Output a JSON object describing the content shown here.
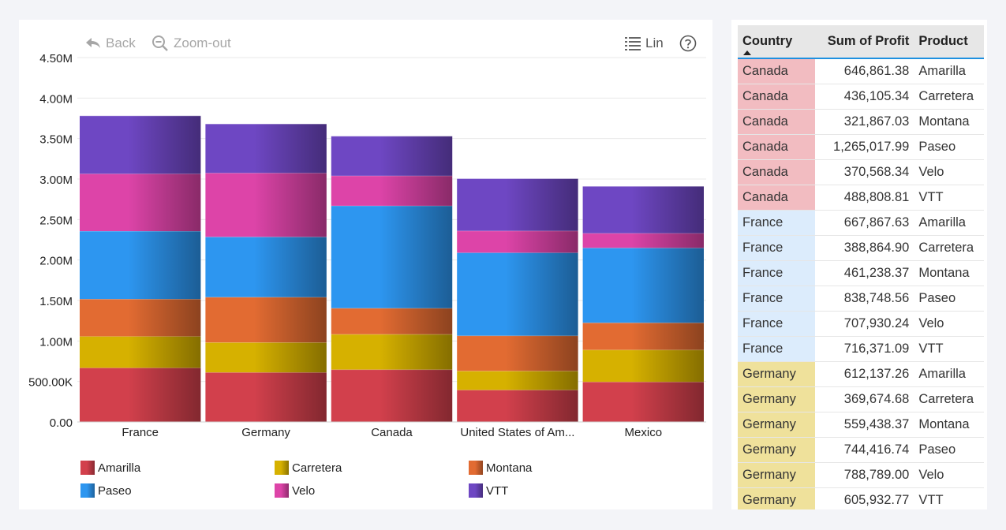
{
  "toolbar": {
    "back_label": "Back",
    "zoom_label": "Zoom-out",
    "scale_label": "Lin"
  },
  "colors": {
    "Amarilla": "#d2404c",
    "Carretera": "#d6b100",
    "Montana": "#e26b32",
    "Paseo": "#2d96f0",
    "Velo": "#dd44a8",
    "VTT": "#6e47c3",
    "canada_row": "#f2bcc1",
    "france_row": "#dcecfc",
    "germany_row": "#efe19b",
    "table_header": "#e7e7e7",
    "header_rule": "#1e90e0"
  },
  "chart_data": {
    "type": "bar",
    "stacked": true,
    "categories": [
      "France",
      "Germany",
      "Canada",
      "United States of Am...",
      "Mexico"
    ],
    "series": [
      {
        "name": "Amarilla",
        "values": [
          667867.63,
          612137.26,
          646861.38,
          395000,
          495000
        ]
      },
      {
        "name": "Carretera",
        "values": [
          388864.9,
          369674.68,
          436105.34,
          235000,
          395000
        ]
      },
      {
        "name": "Montana",
        "values": [
          461238.37,
          559438.37,
          321867.03,
          435000,
          335000
        ]
      },
      {
        "name": "Paseo",
        "values": [
          838748.56,
          744416.74,
          1265017.99,
          1025000,
          925000
        ]
      },
      {
        "name": "Velo",
        "values": [
          707930.24,
          788789.0,
          370568.34,
          270000,
          180000
        ]
      },
      {
        "name": "VTT",
        "values": [
          716371.09,
          605932.77,
          488808.81,
          645000,
          580000
        ]
      }
    ],
    "y_ticks": [
      "0.00",
      "500.00K",
      "1.00M",
      "1.50M",
      "2.00M",
      "2.50M",
      "3.00M",
      "3.50M",
      "4.00M",
      "4.50M"
    ],
    "ylim": [
      0,
      4500000
    ],
    "grid": true,
    "legend_position": "bottom"
  },
  "table": {
    "headers": {
      "country": "Country",
      "profit": "Sum of Profit",
      "product": "Product"
    },
    "rows": [
      {
        "country": "Canada",
        "profit": "646,861.38",
        "product": "Amarilla"
      },
      {
        "country": "Canada",
        "profit": "436,105.34",
        "product": "Carretera"
      },
      {
        "country": "Canada",
        "profit": "321,867.03",
        "product": "Montana"
      },
      {
        "country": "Canada",
        "profit": "1,265,017.99",
        "product": "Paseo"
      },
      {
        "country": "Canada",
        "profit": "370,568.34",
        "product": "Velo"
      },
      {
        "country": "Canada",
        "profit": "488,808.81",
        "product": "VTT"
      },
      {
        "country": "France",
        "profit": "667,867.63",
        "product": "Amarilla"
      },
      {
        "country": "France",
        "profit": "388,864.90",
        "product": "Carretera"
      },
      {
        "country": "France",
        "profit": "461,238.37",
        "product": "Montana"
      },
      {
        "country": "France",
        "profit": "838,748.56",
        "product": "Paseo"
      },
      {
        "country": "France",
        "profit": "707,930.24",
        "product": "Velo"
      },
      {
        "country": "France",
        "profit": "716,371.09",
        "product": "VTT"
      },
      {
        "country": "Germany",
        "profit": "612,137.26",
        "product": "Amarilla"
      },
      {
        "country": "Germany",
        "profit": "369,674.68",
        "product": "Carretera"
      },
      {
        "country": "Germany",
        "profit": "559,438.37",
        "product": "Montana"
      },
      {
        "country": "Germany",
        "profit": "744,416.74",
        "product": "Paseo"
      },
      {
        "country": "Germany",
        "profit": "788,789.00",
        "product": "Velo"
      },
      {
        "country": "Germany",
        "profit": "605,932.77",
        "product": "VTT"
      }
    ]
  }
}
